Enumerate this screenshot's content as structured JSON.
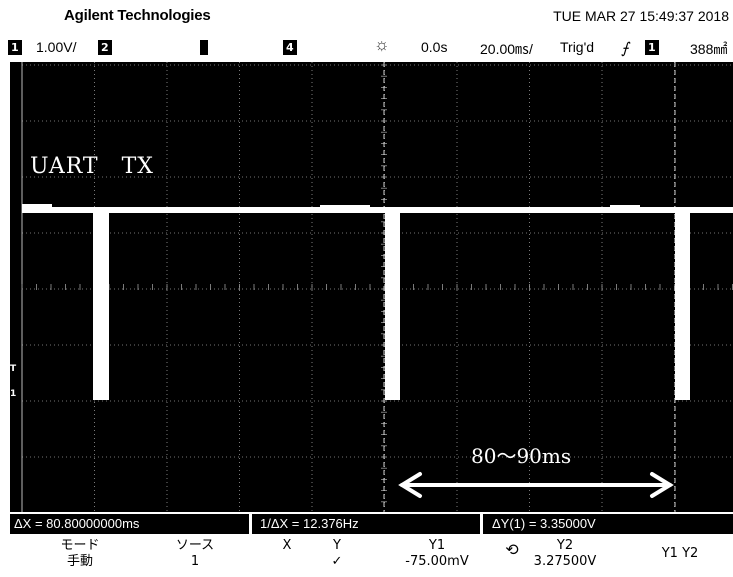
{
  "header": {
    "brand": "Agilent Technologies",
    "datetime": "TUE MAR 27 15:49:37 2018"
  },
  "status": {
    "ch1_marker": "1",
    "ch1_scale": "1.00V/",
    "ch2_marker": "2",
    "ch4_marker": "4",
    "delay": "0.0s",
    "timebase": "20.00㎳/",
    "trigger_state": "Trig'd",
    "trigger_source": "1",
    "trigger_level": "388㎟"
  },
  "screen": {
    "label": "UART　TX",
    "annotation": "80～90ms",
    "trigger_marker": "T",
    "ground_marker": "1"
  },
  "measurements": {
    "delta_x": "ΔX = 80.80000000ms",
    "inv_delta_x": "1/ΔX = 12.376Hz",
    "delta_y": "ΔY(1) = 3.35000V"
  },
  "softkeys": {
    "mode_title": "モード",
    "mode_value": "手動",
    "source_title": "ソース",
    "source_value": "1",
    "x_title": "X",
    "y_title": "Y",
    "y_value": "✓",
    "y1_title": "Y1",
    "y1_value": "-75.00mV",
    "y2_title": "Y2",
    "y2_value": "3.27500V",
    "y1y2_title": "Y1 Y2"
  },
  "colors": {
    "screen_bg": "#000000",
    "trace": "#ffffff",
    "grid": "#9a9a9a"
  }
}
